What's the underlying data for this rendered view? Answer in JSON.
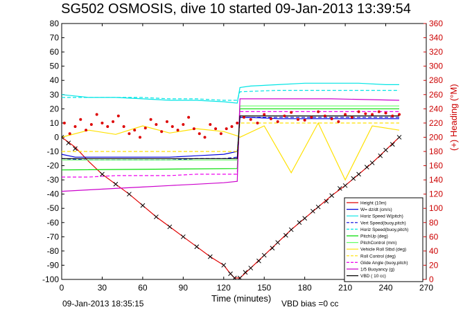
{
  "title": "SG502 OSMOSIS, dive 10 started 09-Jan-2013 13:39:54",
  "footer": {
    "timestamp": "09-Jan-2013 18:35:15",
    "vbd_bias": "VBD bias =0 cc"
  },
  "chart_data": {
    "type": "line",
    "xlabel": "Time (minutes)",
    "ylabel": "",
    "ylabel_right": "(+) Heading (°M)",
    "xlim": [
      0,
      270
    ],
    "ylim": [
      -100,
      80
    ],
    "y2lim": [
      0,
      360
    ],
    "x_ticks": [
      0,
      30,
      60,
      90,
      120,
      150,
      180,
      210,
      240,
      270
    ],
    "y_ticks": [
      -100,
      -90,
      -80,
      -70,
      -60,
      -50,
      -40,
      -30,
      -20,
      -10,
      0,
      10,
      20,
      30,
      40,
      50,
      60,
      70,
      80
    ],
    "y2_ticks": [
      0,
      20,
      40,
      60,
      80,
      100,
      120,
      140,
      160,
      180,
      200,
      220,
      240,
      260,
      280,
      300,
      320,
      340,
      360
    ],
    "grid": false,
    "legend_position": "bottom-right",
    "series": [
      {
        "name": "Height (10m)",
        "color": "#e00000",
        "style": "line",
        "x": [
          0,
          10,
          20,
          30,
          40,
          50,
          60,
          70,
          80,
          90,
          100,
          110,
          120,
          125,
          128,
          132,
          140,
          150,
          160,
          170,
          180,
          190,
          200,
          210,
          220,
          230,
          240,
          250
        ],
        "y": [
          0,
          -7,
          -17,
          -26,
          -33,
          -40,
          -48,
          -56,
          -63,
          -70,
          -77,
          -84,
          -90,
          -96,
          -99,
          -99,
          -92,
          -83,
          -74,
          -65,
          -57,
          -49,
          -41,
          -34,
          -26,
          -18,
          -9,
          0
        ]
      },
      {
        "name": "W= dz/dt (cm/s)",
        "color": "#0000dd",
        "style": "line",
        "x": [
          0,
          10,
          20,
          40,
          60,
          80,
          100,
          120,
          130,
          132,
          140,
          160,
          180,
          200,
          220,
          240,
          250
        ],
        "y": [
          -12,
          -14,
          -14,
          -14,
          -14,
          -14,
          -13,
          -12,
          -10,
          14,
          14,
          13,
          13,
          13,
          13,
          13,
          13
        ]
      },
      {
        "name": "Horiz Speed W(pitch)",
        "color": "#00e5e5",
        "style": "line",
        "x": [
          0,
          10,
          20,
          40,
          60,
          80,
          100,
          120,
          130,
          132,
          140,
          160,
          180,
          200,
          220,
          240,
          250
        ],
        "y": [
          30,
          29,
          28,
          28,
          27,
          26,
          26,
          25,
          24,
          35,
          36,
          37,
          38,
          38,
          38,
          37,
          37
        ]
      },
      {
        "name": "Vert Speed(buoy,pitch)",
        "color": "#0000dd",
        "style": "dash",
        "x": [
          0,
          20,
          40,
          60,
          80,
          100,
          120,
          130,
          132,
          160,
          200,
          250
        ],
        "y": [
          -15,
          -16,
          -16,
          -16,
          -16,
          -15,
          -15,
          -14,
          14,
          14,
          14,
          14
        ]
      },
      {
        "name": "Horiz Speed(buoy,pitch)",
        "color": "#00e5e5",
        "style": "dash",
        "x": [
          0,
          20,
          40,
          60,
          80,
          100,
          120,
          130,
          132,
          160,
          200,
          250
        ],
        "y": [
          28,
          28,
          28,
          28,
          27,
          27,
          26,
          26,
          32,
          33,
          33,
          33
        ]
      },
      {
        "name": "PitchUp (deg)",
        "color": "#00dd00",
        "style": "line",
        "x": [
          0,
          130,
          132,
          250
        ],
        "y": [
          -23,
          -22,
          20,
          20
        ]
      },
      {
        "name": "PitchControl (mm)",
        "color": "#66ff66",
        "style": "line",
        "x": [
          0,
          130,
          132,
          250
        ],
        "y": [
          -16,
          -16,
          22,
          22
        ]
      },
      {
        "name": "Vehicle Roll Stbd (deg)",
        "color": "#ffe100",
        "style": "line",
        "x": [
          0,
          20,
          40,
          60,
          80,
          100,
          120,
          130,
          132,
          150,
          170,
          190,
          210,
          230,
          250
        ],
        "y": [
          0,
          5,
          2,
          8,
          3,
          6,
          4,
          1,
          0,
          8,
          -25,
          10,
          -30,
          8,
          5
        ]
      },
      {
        "name": "Roll Control (deg)",
        "color": "#ffe100",
        "style": "dash",
        "x": [
          0,
          130,
          132,
          250
        ],
        "y": [
          -10,
          -10,
          10,
          10
        ]
      },
      {
        "name": "Glide Angle (buoy,pitch)",
        "color": "#ee00ee",
        "style": "dash",
        "x": [
          0,
          20,
          40,
          60,
          80,
          100,
          120,
          130,
          132,
          160,
          200,
          250
        ],
        "y": [
          -28,
          -28,
          -27,
          -27,
          -27,
          -26,
          -26,
          -26,
          18,
          18,
          18,
          18
        ]
      },
      {
        "name": "1/5 Buoyancy (g)",
        "color": "#cc00cc",
        "style": "line",
        "x": [
          0,
          20,
          40,
          60,
          80,
          100,
          120,
          130,
          132,
          160,
          200,
          250
        ],
        "y": [
          -38,
          -37,
          -36,
          -35,
          -34,
          -33,
          -32,
          -31,
          27,
          27,
          27,
          26
        ]
      },
      {
        "name": "VBD ( 10 cc)",
        "color": "#000000",
        "style": "line",
        "x": [
          0,
          130,
          132,
          250
        ],
        "y": [
          -15,
          -15,
          15,
          15
        ]
      }
    ],
    "heading_series": {
      "name": "Heading (°M)",
      "axis": "right",
      "color": "#dd0000",
      "style": "points",
      "x": [
        2,
        6,
        10,
        14,
        18,
        22,
        26,
        30,
        34,
        38,
        42,
        46,
        50,
        54,
        58,
        62,
        66,
        70,
        74,
        78,
        82,
        86,
        90,
        94,
        98,
        102,
        106,
        110,
        114,
        118,
        122,
        126,
        130,
        135,
        140,
        145,
        150,
        155,
        160,
        165,
        170,
        175,
        180,
        185,
        190,
        195,
        200,
        205,
        210,
        215,
        220,
        225,
        230,
        235,
        240,
        245,
        250
      ],
      "y": [
        220,
        205,
        215,
        225,
        210,
        218,
        232,
        220,
        215,
        222,
        230,
        215,
        205,
        210,
        200,
        213,
        225,
        218,
        208,
        222,
        215,
        210,
        218,
        228,
        212,
        205,
        200,
        218,
        212,
        205,
        212,
        215,
        220,
        228,
        225,
        220,
        232,
        226,
        222,
        230,
        235,
        225,
        224,
        228,
        236,
        230,
        226,
        222,
        232,
        228,
        236,
        233,
        232,
        236,
        234,
        230,
        232
      ]
    },
    "height_markers": {
      "x": [
        0,
        5,
        10,
        30,
        40,
        50,
        60,
        70,
        80,
        90,
        100,
        110,
        120,
        125,
        128,
        132,
        136,
        140,
        146,
        150,
        156,
        160,
        166,
        170,
        176,
        180,
        186,
        190,
        196,
        200,
        206,
        210,
        216,
        220,
        226,
        230,
        236,
        240,
        245,
        250
      ],
      "y": [
        0,
        -4,
        -8,
        -26,
        -33,
        -40,
        -48,
        -56,
        -63,
        -70,
        -77,
        -84,
        -90,
        -96,
        -99,
        -99,
        -95,
        -92,
        -87,
        -83,
        -78,
        -74,
        -69,
        -65,
        -60,
        -57,
        -52,
        -49,
        -45,
        -41,
        -36,
        -34,
        -29,
        -26,
        -21,
        -18,
        -13,
        -9,
        -5,
        0
      ]
    }
  }
}
